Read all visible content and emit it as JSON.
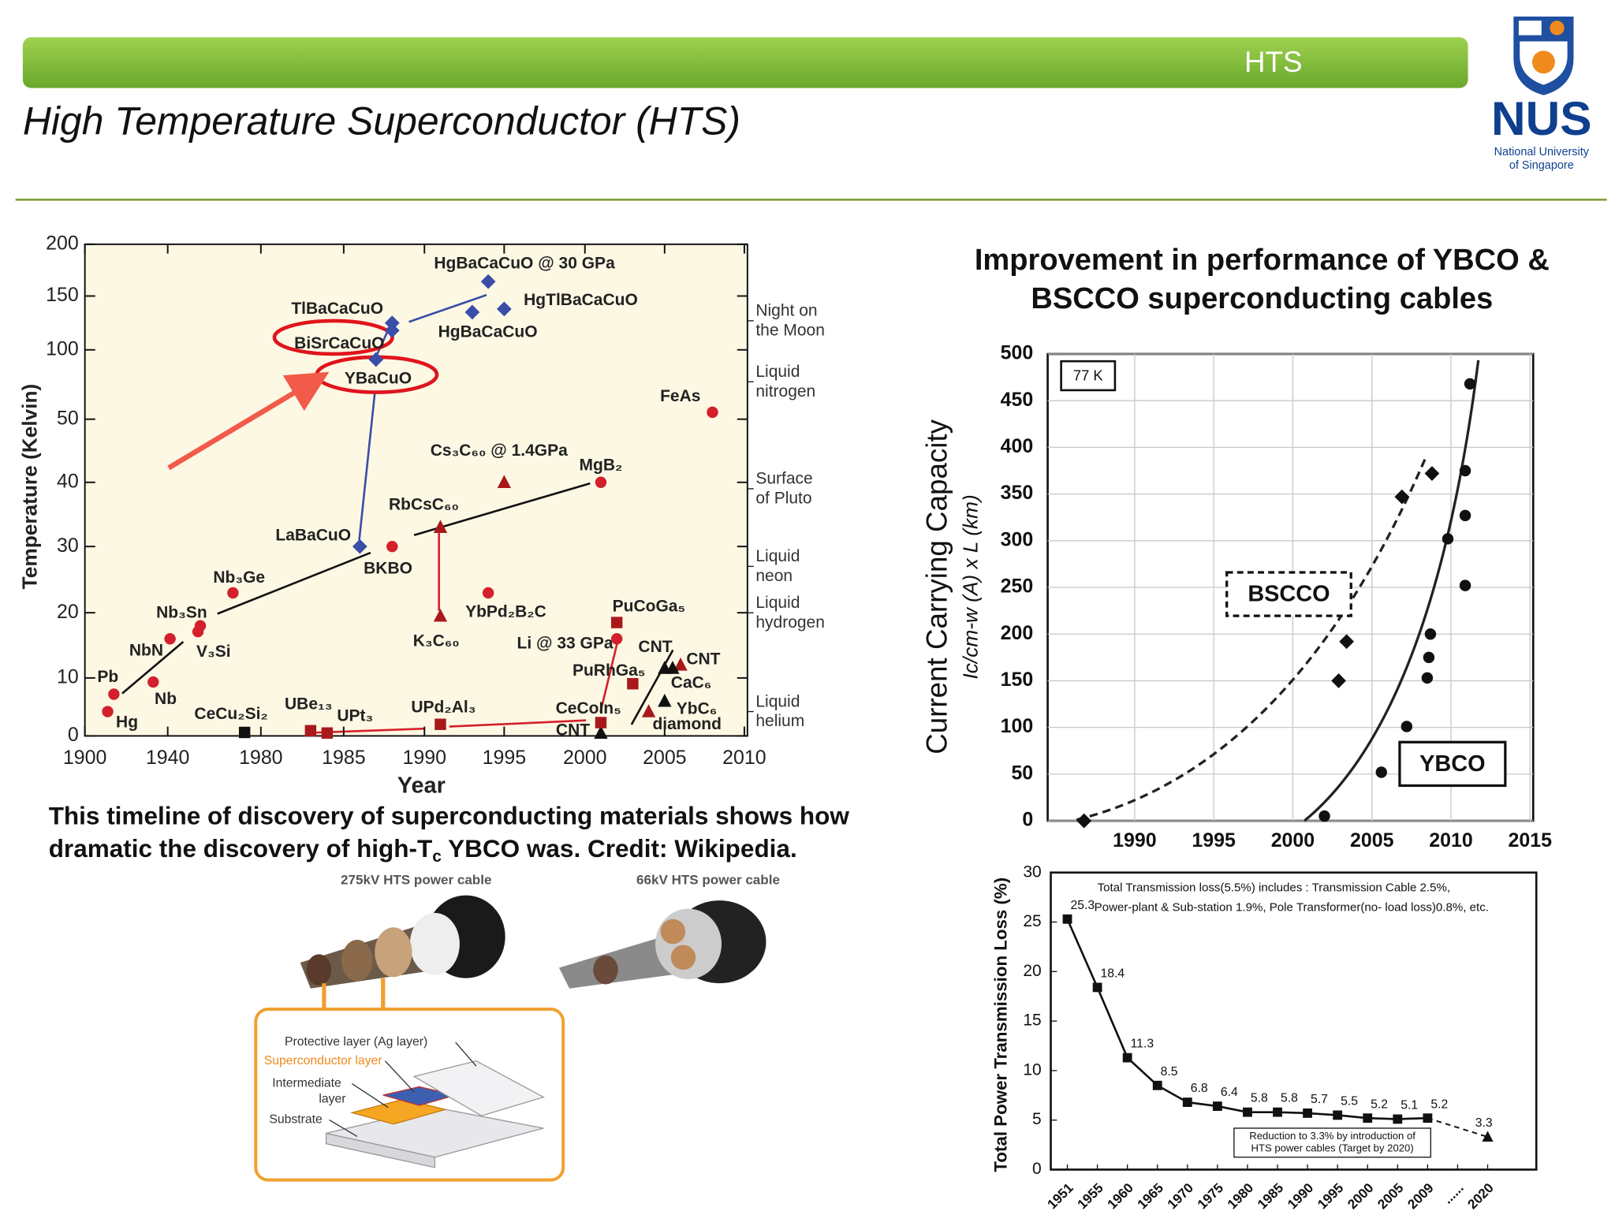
{
  "header": {
    "banner": "HTS",
    "title": "High Temperature Superconductor (HTS)",
    "logo": {
      "name": "NUS",
      "line1": "National University",
      "line2": "of Singapore"
    }
  },
  "caption": {
    "line1": "This timeline of discovery of superconducting materials shows how",
    "line2_a": "dramatic the discovery of high-T",
    "line2_sub": "c",
    "line2_b": " YBCO was. Credit: Wikipedia."
  },
  "chart_data": [
    {
      "type": "scatter",
      "xlabel": "Year",
      "ylabel": "Temperature (Kelvin)",
      "xlim": [
        1900,
        2010
      ],
      "ylim": [
        0,
        200
      ],
      "xticks": [
        1900,
        1940,
        1980,
        1985,
        1990,
        1995,
        2000,
        2005,
        2010
      ],
      "yticks": [
        0,
        10,
        20,
        30,
        40,
        50,
        100,
        150,
        200
      ],
      "points": [
        {
          "label": "Hg",
          "x": 1911,
          "y": 4.2,
          "marker": "circle",
          "color": "#d4202c"
        },
        {
          "label": "Pb",
          "x": 1914,
          "y": 7.2,
          "marker": "circle",
          "color": "#d4202c"
        },
        {
          "label": "Nb",
          "x": 1933,
          "y": 9.3,
          "marker": "circle",
          "color": "#d4202c"
        },
        {
          "label": "NbN",
          "x": 1941,
          "y": 16,
          "marker": "circle",
          "color": "#d4202c"
        },
        {
          "label": "V₃Si",
          "x": 1953,
          "y": 17.1,
          "marker": "circle",
          "color": "#d4202c"
        },
        {
          "label": "Nb₃Sn",
          "x": 1954,
          "y": 18,
          "marker": "circle",
          "color": "#d4202c"
        },
        {
          "label": "Nb₃Ge",
          "x": 1968,
          "y": 23,
          "marker": "circle",
          "color": "#d4202c"
        },
        {
          "label": "LaBaCuO",
          "x": 1986,
          "y": 30,
          "marker": "diamond",
          "color": "#3a4ea8"
        },
        {
          "label": "BKBO",
          "x": 1988,
          "y": 30,
          "marker": "circle",
          "color": "#d4202c"
        },
        {
          "label": "YBaCuO",
          "x": 1987,
          "y": 93,
          "marker": "diamond",
          "color": "#3a4ea8"
        },
        {
          "label": "BiSrCaCuO",
          "x": 1988,
          "y": 118,
          "marker": "diamond",
          "color": "#3a4ea8"
        },
        {
          "label": "TlBaCaCuO",
          "x": 1988,
          "y": 125,
          "marker": "diamond",
          "color": "#3a4ea8"
        },
        {
          "label": "HgBaCaCuO",
          "x": 1993,
          "y": 135,
          "marker": "diamond",
          "color": "#3a4ea8"
        },
        {
          "label": "HgTlBaCaCuO",
          "x": 1995,
          "y": 138,
          "marker": "diamond",
          "color": "#3a4ea8"
        },
        {
          "label": "HgBaCaCuO @ 30 GPa",
          "x": 1994,
          "y": 164,
          "marker": "diamond",
          "color": "#3a4ea8"
        },
        {
          "label": "Cs₃C₆₀ @ 1.4GPa",
          "x": 1995,
          "y": 40,
          "marker": "triangle",
          "color": "#a8191c"
        },
        {
          "label": "RbCsC₆₀",
          "x": 1991,
          "y": 33,
          "marker": "triangle",
          "color": "#a8191c"
        },
        {
          "label": "K₃C₆₀",
          "x": 1991,
          "y": 19.5,
          "marker": "triangle",
          "color": "#a8191c"
        },
        {
          "label": "MgB₂",
          "x": 2001,
          "y": 40,
          "marker": "circle",
          "color": "#d4202c"
        },
        {
          "label": "FeAs",
          "x": 2008,
          "y": 55,
          "marker": "circle",
          "color": "#d4202c"
        },
        {
          "label": "YbPd₂B₂C",
          "x": 1994,
          "y": 23,
          "marker": "circle",
          "color": "#d4202c"
        },
        {
          "label": "PuCoGa₅",
          "x": 2002,
          "y": 18.5,
          "marker": "square",
          "color": "#a8191c"
        },
        {
          "label": "Li @ 33 GPa",
          "x": 2002,
          "y": 16,
          "marker": "circle",
          "color": "#d4202c"
        },
        {
          "label": "PuRhGa₅",
          "x": 2003,
          "y": 9,
          "marker": "square",
          "color": "#a8191c"
        },
        {
          "label": "CNT",
          "x": 2005,
          "y": 11.5,
          "marker": "triangle",
          "color": "#111111"
        },
        {
          "label": "CNT",
          "x": 2006,
          "y": 12,
          "marker": "triangle",
          "color": "#a8191c"
        },
        {
          "label": "CaC₆",
          "x": 2005.5,
          "y": 11.5,
          "marker": "triangle",
          "color": "#111111"
        },
        {
          "label": "YbC₆",
          "x": 2005,
          "y": 6,
          "marker": "triangle",
          "color": "#111111"
        },
        {
          "label": "diamond",
          "x": 2004,
          "y": 4.2,
          "marker": "triangle",
          "color": "#a8191c"
        },
        {
          "label": "CNT",
          "x": 2001,
          "y": 0.5,
          "marker": "triangle",
          "color": "#111111"
        },
        {
          "label": "CeCoIn₅",
          "x": 2001,
          "y": 2.3,
          "marker": "square",
          "color": "#a8191c"
        },
        {
          "label": "UPd₂Al₃",
          "x": 1991,
          "y": 2,
          "marker": "square",
          "color": "#a8191c"
        },
        {
          "label": "UBe₁₃",
          "x": 1983,
          "y": 0.9,
          "marker": "square",
          "color": "#a8191c"
        },
        {
          "label": "UPt₃",
          "x": 1984,
          "y": 0.5,
          "marker": "square",
          "color": "#a8191c"
        },
        {
          "label": "CeCu₂Si₂",
          "x": 1973,
          "y": 0.6,
          "marker": "square",
          "color": "#111111"
        }
      ],
      "annotations": [
        {
          "lines": [
            "Night on",
            "the Moon"
          ],
          "value": 127
        },
        {
          "lines": [
            "Liquid",
            "nitrogen"
          ],
          "value": 77
        },
        {
          "lines": [
            "Surface",
            "of Pluto"
          ],
          "value": 39
        },
        {
          "lines": [
            "Liquid",
            "neon"
          ],
          "value": 27
        },
        {
          "lines": [
            "Liquid",
            "hydrogen"
          ],
          "value": 20
        },
        {
          "lines": [
            "Liquid",
            "helium"
          ],
          "value": 4.2
        }
      ]
    },
    {
      "type": "scatter",
      "title": [
        "Improvement in performance of YBCO &",
        "BSCCO superconducting cables"
      ],
      "ylabel": "Current Carrying Capacity",
      "ylabel2": "Ic/cm-w (A) x L (km)",
      "annotation": "77 K",
      "xlim": [
        1984.5,
        2015.2
      ],
      "ylim": [
        0,
        500
      ],
      "xticks": [
        1990,
        1995,
        2000,
        2005,
        2010,
        2015
      ],
      "yticks": [
        0,
        50,
        100,
        150,
        200,
        250,
        300,
        350,
        400,
        450,
        500
      ],
      "grid": true,
      "series": [
        {
          "name": "BSCCO",
          "marker": "diamond",
          "color": "#111111",
          "x": [
            1986.8,
            2002.9,
            2003.4,
            2006.9,
            2008.8
          ],
          "values": [
            0,
            150,
            192,
            347,
            372
          ]
        },
        {
          "name": "YBCO",
          "marker": "circle",
          "color": "#111111",
          "x": [
            2002,
            2005.6,
            2007.2,
            2008.5,
            2008.6,
            2008.7,
            2010.9,
            2009.8,
            2010.9,
            2010.9,
            2011.2
          ],
          "values": [
            5,
            52,
            101,
            153,
            175,
            200,
            252,
            302,
            327,
            375,
            468
          ]
        }
      ]
    },
    {
      "type": "line",
      "ylabel": "Total Power Transmission Loss (%)",
      "notes": [
        [
          "Total Transmission loss(5.5%) includes : Transmission Cable 2.5%,",
          "Power-plant & Sub-station 1.9%, Pole Transformer(no- load loss)0.8%, etc."
        ],
        [
          "Reduction to 3.3% by introduction of",
          "HTS power cables (Target by 2020)"
        ]
      ],
      "categories": [
        "1951",
        "1955",
        "1960",
        "1965",
        "1970",
        "1975",
        "1980",
        "1985",
        "1990",
        "1995",
        "2000",
        "2005",
        "2009",
        "......",
        "2020"
      ],
      "ylim": [
        0,
        30
      ],
      "yticks": [
        0,
        5,
        10,
        15,
        20,
        25,
        30
      ],
      "grid": false,
      "series": [
        {
          "color": "#111111",
          "values": [
            25.3,
            18.4,
            11.3,
            8.5,
            6.8,
            6.4,
            5.8,
            5.8,
            5.7,
            5.5,
            5.2,
            5.1,
            5.2,
            null,
            3.3
          ]
        }
      ]
    }
  ],
  "cable": {
    "left": "275kV HTS power cable",
    "right": "66kV HTS power cable",
    "protective": "Protective layer (Ag layer)",
    "superconductor": "Superconductor layer",
    "intermediate": [
      "Intermediate",
      "layer"
    ],
    "substrate": "Substrate"
  }
}
